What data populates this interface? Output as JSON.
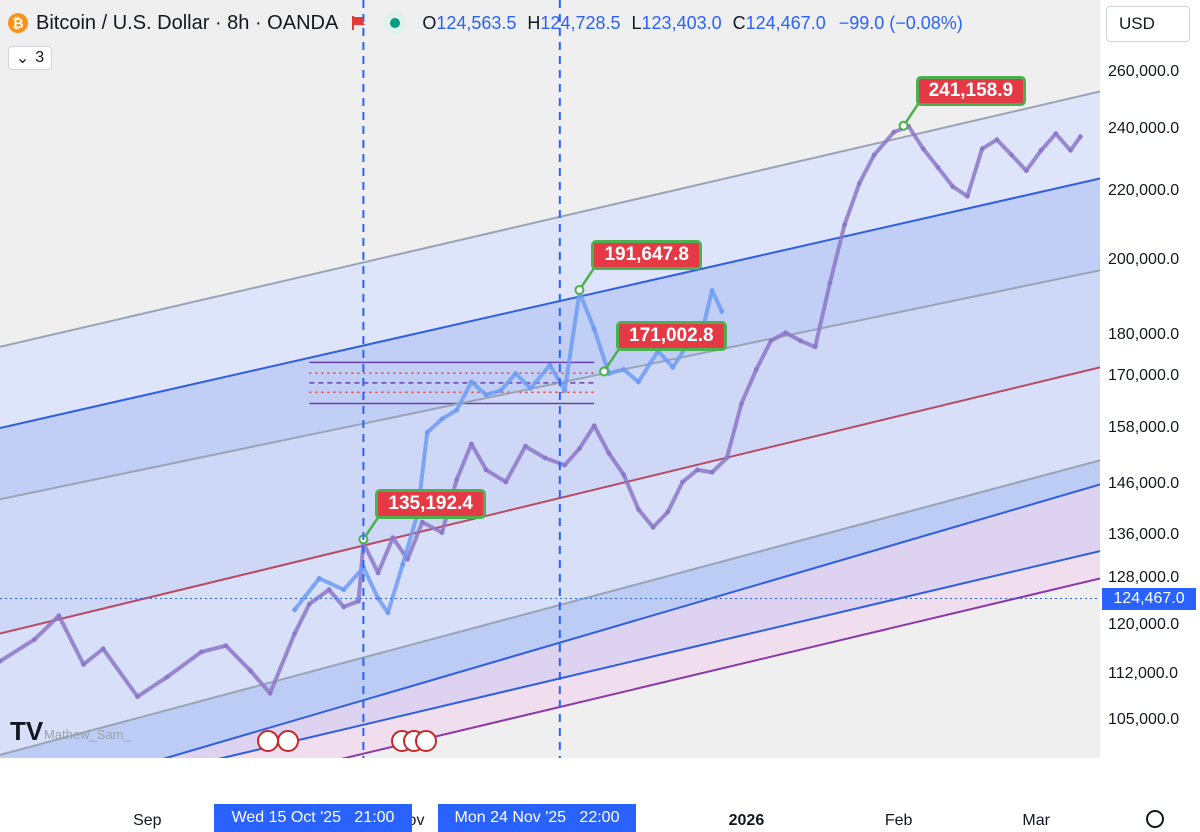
{
  "header": {
    "symbol_title": "Bitcoin / U.S. Dollar · 8h · OANDA",
    "logo_glyph": "₿",
    "open_label": "O",
    "open": "124,563.5",
    "high_label": "H",
    "high": "124,728.5",
    "low_label": "L",
    "low": "123,403.0",
    "close_label": "C",
    "close": "124,467.0",
    "change": "−99.0 (−0.08%)",
    "indicator_count": "3",
    "indicator_chevron": "⌄"
  },
  "currency": {
    "label": "USD",
    "chevron": "⌄"
  },
  "watermark": {
    "logo": "TV",
    "author": "Mathew_Sam_"
  },
  "colors": {
    "channel_blue": "#2f5ee0",
    "channel_gray": "#9aa3b5",
    "channel_red": "#b84a64",
    "channel_purple": "#8a3aa8",
    "fill_light": "#dbe3fb",
    "fill_mid": "#b9c9f7",
    "fill_purple": "#d9cdf0",
    "fill_pink": "#f0dbee",
    "candle_purple": "#8c78c8",
    "candle_blue": "#6f9cf2",
    "callout_red": "#e63946",
    "callout_border": "#4caf50",
    "last_price": "#2962ff"
  },
  "chart_data": {
    "type": "line",
    "title": "Bitcoin / U.S. Dollar · 8h · OANDA",
    "y_scale": "log",
    "ylim": [
      100000,
      268000
    ],
    "y_ticks": [
      "260,000.0",
      "240,000.0",
      "220,000.0",
      "200,000.0",
      "180,000.0",
      "170,000.0",
      "158,000.0",
      "146,000.0",
      "136,000.0",
      "128,000.0",
      "120,000.0",
      "112,000.0",
      "105,000.0"
    ],
    "y_tick_values": [
      260000,
      240000,
      220000,
      200000,
      180000,
      170000,
      158000,
      146000,
      136000,
      128000,
      120000,
      112000,
      105000
    ],
    "x_ticks": [
      "Sep",
      "2026",
      "Feb",
      "Mar"
    ],
    "x_tick_dates": [
      "2025-09-01",
      "2026-01-01",
      "2026-02-01",
      "2026-03-01"
    ],
    "x_range": [
      "2025-08-02",
      "2026-03-14"
    ],
    "last_price": 124467,
    "last_price_label": "124,467.0",
    "highlighted_dates": [
      {
        "date": "2025-10-15",
        "label": "Wed 15 Oct '25",
        "time": "21:00"
      },
      {
        "date": "2025-11-24",
        "label": "Mon 24 Nov '25",
        "time": "22:00"
      }
    ],
    "partial_axis_label": "ov",
    "callouts": [
      {
        "label": "135,192.4",
        "date": "2025-10-15",
        "price": 135192.4
      },
      {
        "label": "191,647.8",
        "date": "2025-11-28",
        "price": 191647.8
      },
      {
        "label": "171,002.8",
        "date": "2025-12-03",
        "price": 171002.8
      },
      {
        "label": "241,158.9",
        "date": "2026-02-02",
        "price": 241158.9
      }
    ],
    "channel_lines": [
      {
        "color": "#9aa3b5",
        "start": [
          "2025-08-02",
          177000
        ],
        "end": [
          "2026-03-14",
          253000
        ]
      },
      {
        "color": "#2f5ee0",
        "start": [
          "2025-08-02",
          158000
        ],
        "end": [
          "2026-03-14",
          224000
        ]
      },
      {
        "color": "#9aa3b5",
        "start": [
          "2025-08-02",
          143000
        ],
        "end": [
          "2026-03-14",
          197000
        ]
      },
      {
        "color": "#b84a64",
        "start": [
          "2025-08-02",
          118500
        ],
        "end": [
          "2026-03-14",
          172000
        ]
      },
      {
        "color": "#9aa3b5",
        "start": [
          "2025-08-02",
          100000
        ],
        "end": [
          "2026-03-14",
          151000
        ]
      },
      {
        "color": "#2f5ee0",
        "start": [
          "2025-09-07",
          100000
        ],
        "end": [
          "2026-03-14",
          146000
        ]
      },
      {
        "color": "#2f5ee0",
        "start": [
          "2025-09-19",
          100000
        ],
        "end": [
          "2026-03-14",
          133000
        ]
      },
      {
        "color": "#8a3aa8",
        "start": [
          "2025-10-14",
          100000
        ],
        "end": [
          "2026-03-14",
          128000
        ]
      }
    ],
    "channel_fills": [
      {
        "color": "#dbe3fb",
        "between": [
          0,
          1
        ]
      },
      {
        "color": "#b9c9f7",
        "between": [
          1,
          2
        ]
      },
      {
        "color": "#c8d4f7",
        "between": [
          2,
          3
        ]
      },
      {
        "color": "#d2dcfa",
        "between": [
          3,
          4
        ]
      },
      {
        "color": "#b4c6f6",
        "between": [
          4,
          5
        ]
      },
      {
        "color": "#d9cdf0",
        "between": [
          5,
          6
        ]
      },
      {
        "color": "#f0dbee",
        "between": [
          6,
          7
        ]
      }
    ],
    "range_box": {
      "start": "2025-10-04",
      "end": "2025-12-01",
      "levels": [
        173200,
        170600,
        168300,
        166100,
        163500
      ]
    },
    "series": [
      {
        "name": "",
        "color": "#8c78c8",
        "points": [
          [
            "2025-08-02",
            114000
          ],
          [
            "2025-08-09",
            117500
          ],
          [
            "2025-08-14",
            121500
          ],
          [
            "2025-08-19",
            113500
          ],
          [
            "2025-08-23",
            116000
          ],
          [
            "2025-08-30",
            108500
          ],
          [
            "2025-09-05",
            111500
          ],
          [
            "2025-09-12",
            115500
          ],
          [
            "2025-09-17",
            116500
          ],
          [
            "2025-09-22",
            112500
          ],
          [
            "2025-09-26",
            109000
          ],
          [
            "2025-10-01",
            118500
          ],
          [
            "2025-10-04",
            123500
          ],
          [
            "2025-10-08",
            126000
          ],
          [
            "2025-10-11",
            123000
          ],
          [
            "2025-10-14",
            124000
          ],
          [
            "2025-10-15",
            134500
          ],
          [
            "2025-10-18",
            129000
          ],
          [
            "2025-10-21",
            135500
          ],
          [
            "2025-10-24",
            131500
          ],
          [
            "2025-10-27",
            138500
          ],
          [
            "2025-10-31",
            136500
          ],
          [
            "2025-11-03",
            147000
          ],
          [
            "2025-11-06",
            154500
          ],
          [
            "2025-11-09",
            149000
          ],
          [
            "2025-11-13",
            146500
          ],
          [
            "2025-11-17",
            154000
          ],
          [
            "2025-11-21",
            151500
          ],
          [
            "2025-11-25",
            150000
          ],
          [
            "2025-11-28",
            153500
          ],
          [
            "2025-12-01",
            158500
          ],
          [
            "2025-12-04",
            152500
          ],
          [
            "2025-12-07",
            148000
          ],
          [
            "2025-12-10",
            141000
          ],
          [
            "2025-12-13",
            137500
          ],
          [
            "2025-12-16",
            140500
          ],
          [
            "2025-12-19",
            146500
          ],
          [
            "2025-12-22",
            149000
          ],
          [
            "2025-12-25",
            148500
          ],
          [
            "2025-12-28",
            151500
          ],
          [
            "2025-12-31",
            163500
          ],
          [
            "2026-01-03",
            171500
          ],
          [
            "2026-01-06",
            178500
          ],
          [
            "2026-01-09",
            180500
          ],
          [
            "2026-01-12",
            178500
          ],
          [
            "2026-01-15",
            177000
          ],
          [
            "2026-01-18",
            193500
          ],
          [
            "2026-01-21",
            210000
          ],
          [
            "2026-01-24",
            222500
          ],
          [
            "2026-01-27",
            231500
          ],
          [
            "2026-01-31",
            239000
          ],
          [
            "2026-02-03",
            241000
          ],
          [
            "2026-02-06",
            233500
          ],
          [
            "2026-02-09",
            227500
          ],
          [
            "2026-02-12",
            221500
          ],
          [
            "2026-02-15",
            218500
          ],
          [
            "2026-02-18",
            233500
          ],
          [
            "2026-02-21",
            236500
          ],
          [
            "2026-02-24",
            231500
          ],
          [
            "2026-02-27",
            226500
          ],
          [
            "2026-03-02",
            233000
          ],
          [
            "2026-03-05",
            238500
          ],
          [
            "2026-03-08",
            233000
          ],
          [
            "2026-03-10",
            237500
          ]
        ]
      },
      {
        "name": "",
        "color": "#6f9cf2",
        "points": [
          [
            "2025-10-01",
            122500
          ],
          [
            "2025-10-06",
            128000
          ],
          [
            "2025-10-11",
            126000
          ],
          [
            "2025-10-15",
            130000
          ],
          [
            "2025-10-18",
            124500
          ],
          [
            "2025-10-20",
            122000
          ],
          [
            "2025-10-23",
            130500
          ],
          [
            "2025-10-26",
            140000
          ],
          [
            "2025-10-28",
            157000
          ],
          [
            "2025-10-31",
            160000
          ],
          [
            "2025-11-03",
            162000
          ],
          [
            "2025-11-06",
            168500
          ],
          [
            "2025-11-09",
            165500
          ],
          [
            "2025-11-12",
            166500
          ],
          [
            "2025-11-15",
            170500
          ],
          [
            "2025-11-18",
            167000
          ],
          [
            "2025-11-22",
            172500
          ],
          [
            "2025-11-25",
            166500
          ],
          [
            "2025-11-28",
            191000
          ],
          [
            "2025-12-01",
            181500
          ],
          [
            "2025-12-04",
            170500
          ],
          [
            "2025-12-07",
            171500
          ],
          [
            "2025-12-10",
            168500
          ],
          [
            "2025-12-14",
            176000
          ],
          [
            "2025-12-17",
            172000
          ],
          [
            "2025-12-20",
            177500
          ],
          [
            "2025-12-23",
            181000
          ],
          [
            "2025-12-25",
            191500
          ],
          [
            "2025-12-27",
            186000
          ]
        ]
      }
    ]
  }
}
